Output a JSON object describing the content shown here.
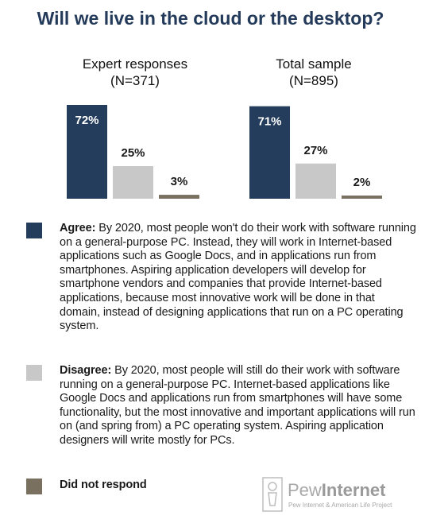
{
  "title": "Will we live in the cloud or the desktop?",
  "chart_data": {
    "type": "bar",
    "categories": [
      "Agree",
      "Disagree",
      "Did not respond"
    ],
    "colors": [
      "#253d5c",
      "#c8c8c8",
      "#7a7060"
    ],
    "panels": [
      {
        "title": "Expert responses",
        "subtitle": "(N=371)",
        "values": [
          72,
          25,
          3
        ],
        "labels": [
          "72%",
          "25%",
          "3%"
        ]
      },
      {
        "title": "Total sample",
        "subtitle": "(N=895)",
        "values": [
          71,
          27,
          2
        ],
        "labels": [
          "71%",
          "27%",
          "2%"
        ]
      }
    ],
    "ylim": [
      0,
      72
    ]
  },
  "legend": [
    {
      "term": "Agree:",
      "text": "By 2020, most people won't do their work with software running on a general-purpose PC. Instead, they will work in Internet-based applications such as Google Docs, and in applications run from smartphones. Aspiring application developers will develop for smartphone vendors and companies that provide Internet-based applications, because most innovative work will be done in that domain, instead of designing applications that run on a PC operating system."
    },
    {
      "term": "Disagree:",
      "text": "By 2020, most people will still do their work with software running on a general-purpose PC. Internet-based applications like Google Docs and applications run from smartphones will have some functionality, but the most innovative and important applications will run on (and spring from) a PC operating system. Aspiring application designers will write mostly for PCs."
    },
    {
      "term": "Did not respond",
      "text": ""
    }
  ],
  "logo": {
    "brand_light": "Pew",
    "brand_bold": "Internet",
    "sub": "Pew Internet & American Life Project"
  }
}
